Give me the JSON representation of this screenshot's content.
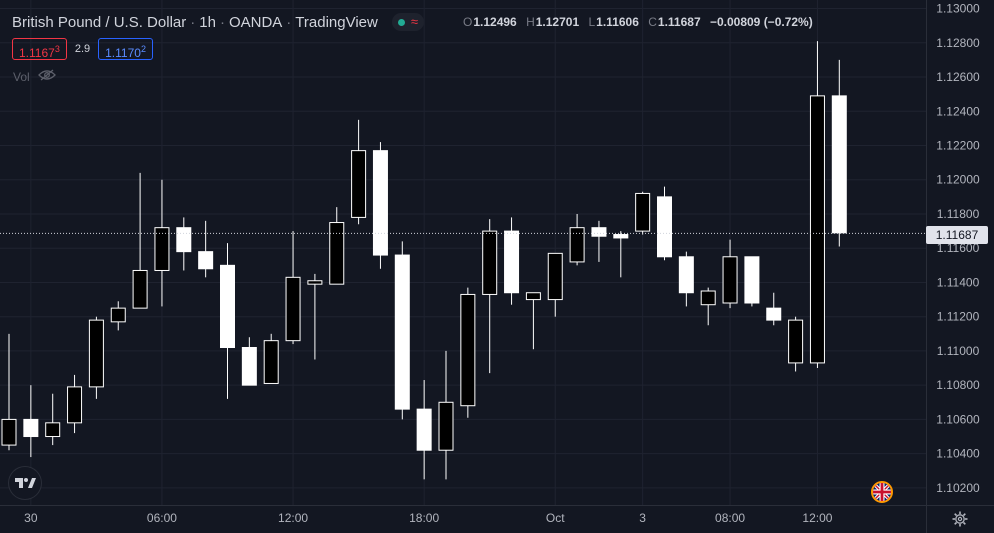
{
  "header": {
    "symbol": "British Pound / U.S. Dollar",
    "interval": "1h",
    "exchange": "OANDA",
    "source": "TradingView",
    "ohlc": {
      "open_label": "O",
      "open": "1.12496",
      "high_label": "H",
      "high": "1.12701",
      "low_label": "L",
      "low": "1.11606",
      "close_label": "C",
      "close": "1.11687",
      "change": "−0.00809 (−0.72%)"
    }
  },
  "quote": {
    "bid_main": "1.1167",
    "bid_sup": "3",
    "spread": "2.9",
    "ask_main": "1.1170",
    "ask_sup": "2"
  },
  "volume_label": "Vol",
  "last_price_label": "1.11687",
  "colors": {
    "background": "#131722",
    "grid": "#1f2330",
    "text": "#d1d4dc",
    "muted": "#787b86",
    "bid": "#f23645",
    "ask": "#2962ff",
    "up_candle": "#000000",
    "down_candle": "#ffffff",
    "wick": "#ffffff"
  },
  "icons": {
    "logo": "tradingview-logo-icon",
    "flag": "uk-flag-icon",
    "settings": "gear-icon",
    "visibility": "eye-off-icon"
  },
  "chart_data": {
    "type": "candlestick",
    "y_axis": {
      "min": 1.101,
      "max": 1.1305,
      "ticks": [
        "1.13000",
        "1.12800",
        "1.12600",
        "1.12400",
        "1.12200",
        "1.12000",
        "1.11800",
        "1.11600",
        "1.11400",
        "1.11200",
        "1.11000",
        "1.10800",
        "1.10600",
        "1.10400",
        "1.10200"
      ]
    },
    "x_axis": {
      "labels": [
        {
          "label": "30",
          "index": 1
        },
        {
          "label": "06:00",
          "index": 7
        },
        {
          "label": "12:00",
          "index": 13
        },
        {
          "label": "18:00",
          "index": 19
        },
        {
          "label": "Oct",
          "index": 25
        },
        {
          "label": "3",
          "index": 29
        },
        {
          "label": "08:00",
          "index": 33
        },
        {
          "label": "12:00",
          "index": 37
        }
      ]
    },
    "last_price": 1.11687,
    "candles": [
      {
        "o": 1.1045,
        "h": 1.111,
        "l": 1.1042,
        "c": 1.106
      },
      {
        "o": 1.106,
        "h": 1.108,
        "l": 1.1038,
        "c": 1.105
      },
      {
        "o": 1.105,
        "h": 1.1075,
        "l": 1.1045,
        "c": 1.1058
      },
      {
        "o": 1.1058,
        "h": 1.1086,
        "l": 1.1052,
        "c": 1.1079
      },
      {
        "o": 1.1079,
        "h": 1.112,
        "l": 1.1072,
        "c": 1.1118
      },
      {
        "o": 1.1117,
        "h": 1.1129,
        "l": 1.1112,
        "c": 1.1125
      },
      {
        "o": 1.1125,
        "h": 1.1204,
        "l": 1.1125,
        "c": 1.1147
      },
      {
        "o": 1.1147,
        "h": 1.12,
        "l": 1.1126,
        "c": 1.1172
      },
      {
        "o": 1.1172,
        "h": 1.1178,
        "l": 1.1147,
        "c": 1.1158
      },
      {
        "o": 1.1158,
        "h": 1.1176,
        "l": 1.1143,
        "c": 1.1148
      },
      {
        "o": 1.115,
        "h": 1.1163,
        "l": 1.1072,
        "c": 1.1102
      },
      {
        "o": 1.1102,
        "h": 1.1108,
        "l": 1.108,
        "c": 1.108
      },
      {
        "o": 1.1081,
        "h": 1.111,
        "l": 1.1081,
        "c": 1.1106
      },
      {
        "o": 1.1106,
        "h": 1.117,
        "l": 1.1104,
        "c": 1.1143
      },
      {
        "o": 1.1139,
        "h": 1.1145,
        "l": 1.1095,
        "c": 1.1141
      },
      {
        "o": 1.1139,
        "h": 1.1184,
        "l": 1.1139,
        "c": 1.1175
      },
      {
        "o": 1.1178,
        "h": 1.1235,
        "l": 1.1174,
        "c": 1.1217
      },
      {
        "o": 1.1217,
        "h": 1.1222,
        "l": 1.1148,
        "c": 1.1156
      },
      {
        "o": 1.1156,
        "h": 1.1164,
        "l": 1.106,
        "c": 1.1066
      },
      {
        "o": 1.1066,
        "h": 1.1083,
        "l": 1.1025,
        "c": 1.1042
      },
      {
        "o": 1.1042,
        "h": 1.11,
        "l": 1.1025,
        "c": 1.107
      },
      {
        "o": 1.1068,
        "h": 1.1137,
        "l": 1.1061,
        "c": 1.1133
      },
      {
        "o": 1.1133,
        "h": 1.1177,
        "l": 1.1087,
        "c": 1.117
      },
      {
        "o": 1.117,
        "h": 1.1178,
        "l": 1.1127,
        "c": 1.1134
      },
      {
        "o": 1.113,
        "h": 1.1133,
        "l": 1.1101,
        "c": 1.1134
      },
      {
        "o": 1.113,
        "h": 1.1157,
        "l": 1.112,
        "c": 1.1157
      },
      {
        "o": 1.1152,
        "h": 1.118,
        "l": 1.115,
        "c": 1.1172
      },
      {
        "o": 1.1172,
        "h": 1.1176,
        "l": 1.1152,
        "c": 1.1167
      },
      {
        "o": 1.1168,
        "h": 1.117,
        "l": 1.1143,
        "c": 1.1166
      },
      {
        "o": 1.117,
        "h": 1.1193,
        "l": 1.1168,
        "c": 1.1192
      },
      {
        "o": 1.119,
        "h": 1.1196,
        "l": 1.1153,
        "c": 1.1155
      },
      {
        "o": 1.1155,
        "h": 1.1158,
        "l": 1.1126,
        "c": 1.1134
      },
      {
        "o": 1.1127,
        "h": 1.1137,
        "l": 1.1115,
        "c": 1.1135
      },
      {
        "o": 1.1128,
        "h": 1.1165,
        "l": 1.1125,
        "c": 1.1155
      },
      {
        "o": 1.1155,
        "h": 1.1155,
        "l": 1.1126,
        "c": 1.1128
      },
      {
        "o": 1.1125,
        "h": 1.1134,
        "l": 1.1115,
        "c": 1.1118
      },
      {
        "o": 1.1093,
        "h": 1.112,
        "l": 1.1088,
        "c": 1.1118
      },
      {
        "o": 1.1093,
        "h": 1.1281,
        "l": 1.109,
        "c": 1.1249
      },
      {
        "o": 1.1249,
        "h": 1.127,
        "l": 1.1161,
        "c": 1.1169
      }
    ]
  }
}
